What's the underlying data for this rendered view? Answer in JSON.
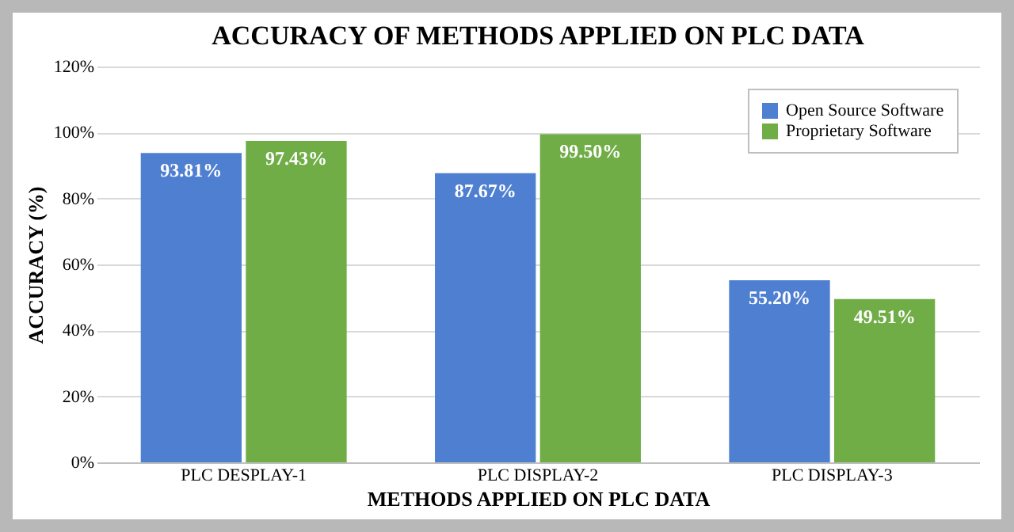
{
  "chart_data": {
    "type": "bar",
    "title": "ACCURACY OF METHODS APPLIED ON PLC DATA",
    "xlabel": "METHODS APPLIED ON PLC DATA",
    "ylabel": "ACCURACY (%)",
    "categories": [
      "PLC DESPLAY-1",
      "PLC DISPLAY-2",
      "PLC DISPLAY-3"
    ],
    "series": [
      {
        "name": "Open Source Software",
        "color": "#4f7fd0",
        "values": [
          93.81,
          87.67,
          55.2
        ],
        "value_labels": [
          "93.81%",
          "87.67%",
          "55.20%"
        ]
      },
      {
        "name": "Proprietary Software",
        "color": "#70ad47",
        "values": [
          97.43,
          99.5,
          49.51
        ],
        "value_labels": [
          "97.43%",
          "99.50%",
          "49.51%"
        ]
      }
    ],
    "ylim": [
      0,
      120
    ],
    "yticks": [
      {
        "value": 0,
        "label": "0%"
      },
      {
        "value": 20,
        "label": "20%"
      },
      {
        "value": 40,
        "label": "40%"
      },
      {
        "value": 60,
        "label": "60%"
      },
      {
        "value": 80,
        "label": "80%"
      },
      {
        "value": 100,
        "label": "100%"
      },
      {
        "value": 120,
        "label": "120%"
      }
    ],
    "grid": "y",
    "legend": "top right"
  }
}
